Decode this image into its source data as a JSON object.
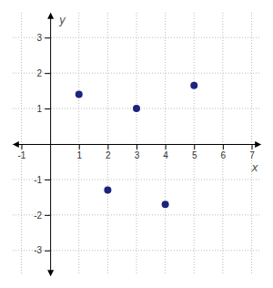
{
  "chart_data": {
    "type": "scatter",
    "x": [
      1,
      2,
      3,
      4,
      5
    ],
    "values": [
      1.4,
      -1.3,
      1.0,
      -1.7,
      1.65
    ],
    "color": "#1a237e",
    "xlim": [
      -1.3,
      7.3
    ],
    "ylim": [
      -3.7,
      3.7
    ],
    "xticks": [
      -1,
      1,
      2,
      3,
      4,
      5,
      6,
      7
    ],
    "yticks": [
      -3,
      -2,
      -1,
      1,
      2,
      3
    ],
    "xlabel": "x",
    "ylabel": "y",
    "grid": true
  }
}
